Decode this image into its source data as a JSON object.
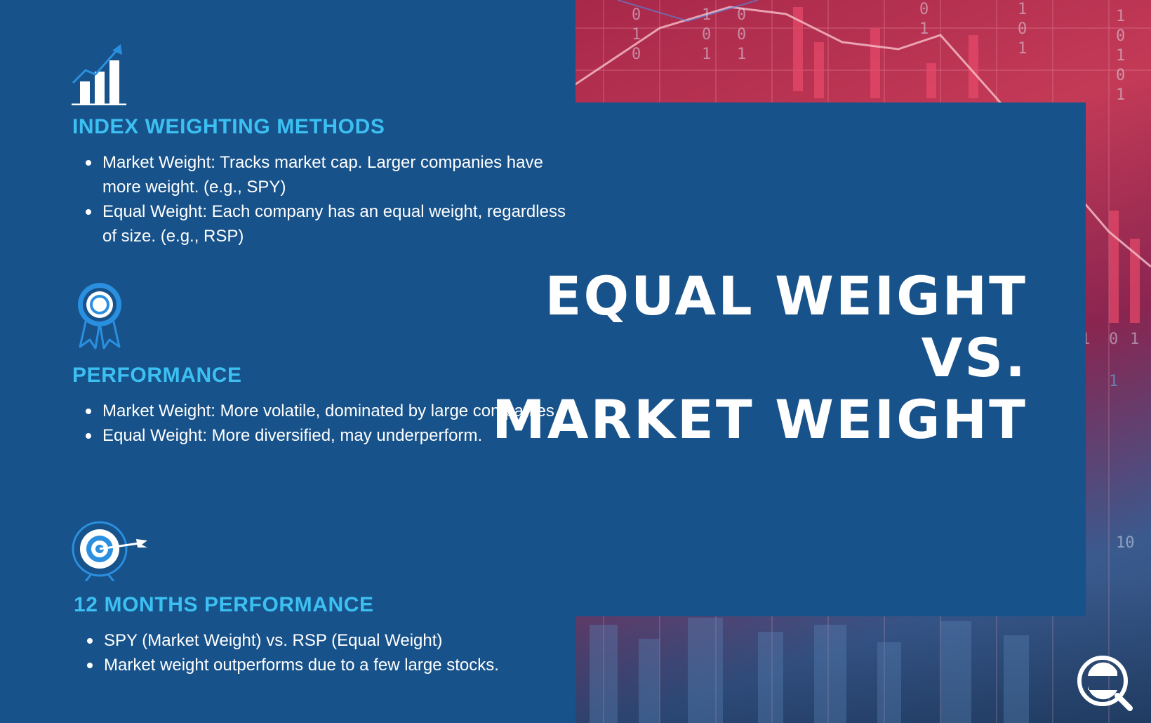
{
  "sections": [
    {
      "icon": "bar-chart-growth-icon",
      "heading": "INDEX WEIGHTING METHODS",
      "bullets": [
        "Market Weight: Tracks market cap. Larger companies have more weight. (e.g., SPY)",
        "Equal Weight: Each company has an equal weight, regardless of size. (e.g., RSP)"
      ]
    },
    {
      "icon": "award-ribbon-icon",
      "heading": "PERFORMANCE",
      "bullets": [
        "Market Weight: More volatile, dominated by large companies.",
        "Equal Weight: More diversified, may underperform."
      ]
    },
    {
      "icon": "target-arrow-icon",
      "heading": "12 MONTHS PERFORMANCE",
      "bullets": [
        "SPY (Market Weight) vs. RSP (Equal Weight)",
        "Market weight outperforms due to a few large stocks."
      ]
    }
  ],
  "title": {
    "line1": "Equal Weight",
    "line2": "vs.",
    "line3": "Market Weight"
  },
  "logo": "brand-logo-icon",
  "colors": {
    "background": "#17528a",
    "heading_accent": "#3cc0f2",
    "text": "#ffffff"
  }
}
